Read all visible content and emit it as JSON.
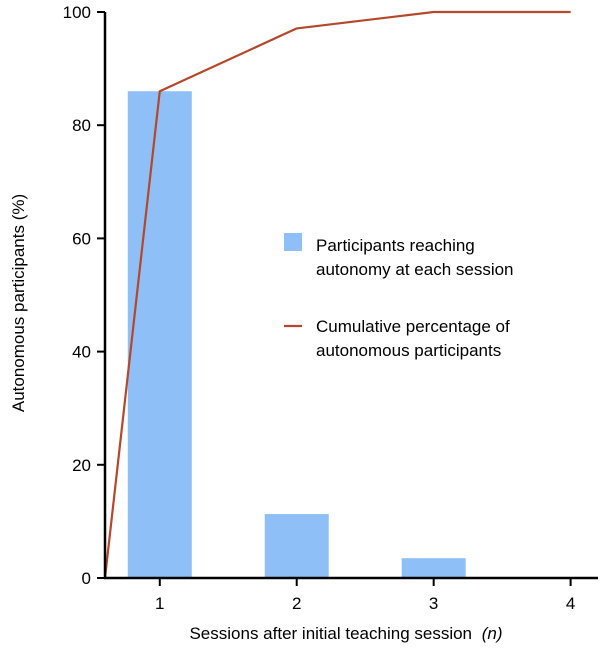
{
  "chart_data": {
    "type": "bar",
    "title": "",
    "xlabel": "Sessions after initial teaching session",
    "xlabel_italic": "(n)",
    "ylabel": "Autonomous participants (%)",
    "ylim": [
      0,
      100
    ],
    "xlim": [
      0.6,
      4.2
    ],
    "yticks": [
      0,
      20,
      40,
      60,
      80,
      100
    ],
    "xticks": [
      1,
      2,
      3,
      4
    ],
    "grid": false,
    "legend_position": "center-right",
    "colors": {
      "bar": "#8fbff7",
      "line": "#b5472b",
      "axis": "#000000"
    },
    "series": [
      {
        "name": "Participants reaching autonomy at each session",
        "kind": "bar",
        "x": [
          1,
          2,
          3
        ],
        "values": [
          86,
          11.3,
          3.5
        ]
      },
      {
        "name": "Cumulative percentage of autonomous participants",
        "kind": "line",
        "x": [
          0.6,
          1,
          2,
          3,
          4
        ],
        "values": [
          0,
          86,
          97.1,
          100,
          100
        ]
      }
    ],
    "legend": {
      "bar_lines": [
        "Participants reaching",
        "autonomy at each session"
      ],
      "line_lines": [
        "Cumulative percentage of",
        "autonomous participants"
      ]
    }
  }
}
